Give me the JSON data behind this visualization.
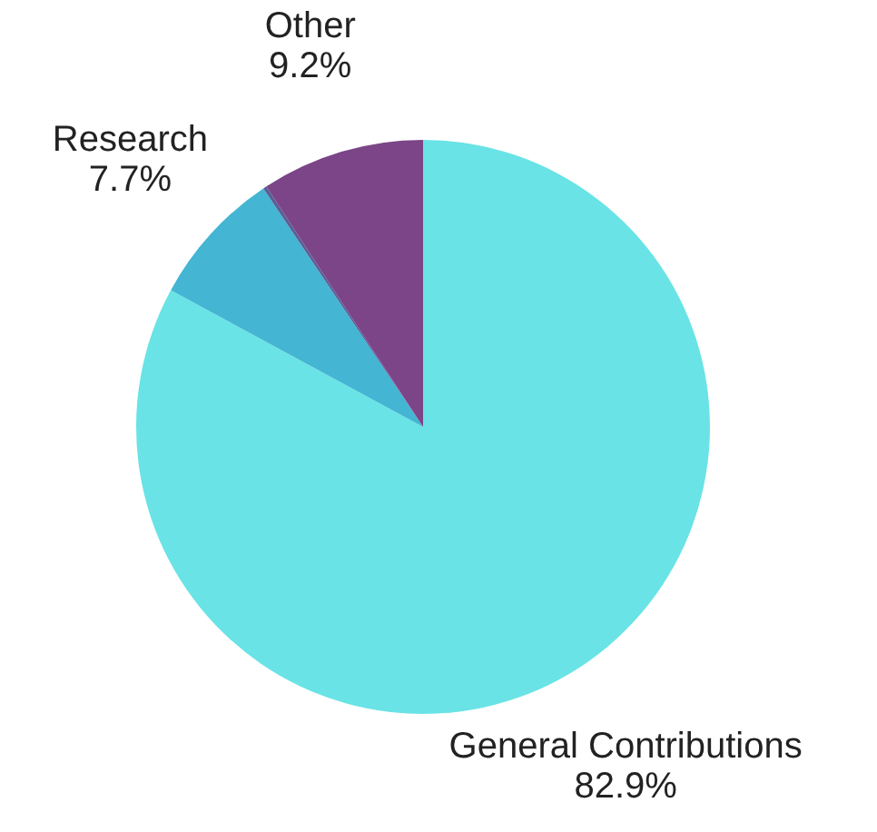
{
  "chart_data": {
    "type": "pie",
    "categories": [
      "General Contributions",
      "Research",
      null,
      "Other"
    ],
    "values": [
      82.9,
      7.7,
      0.2,
      9.2
    ],
    "colors": [
      "#69e3e6",
      "#44b5d3",
      "#5b5f96",
      "#7b4587"
    ],
    "value_labels": [
      "82.9%",
      "7.7%",
      null,
      "9.2%"
    ],
    "legend": false
  }
}
